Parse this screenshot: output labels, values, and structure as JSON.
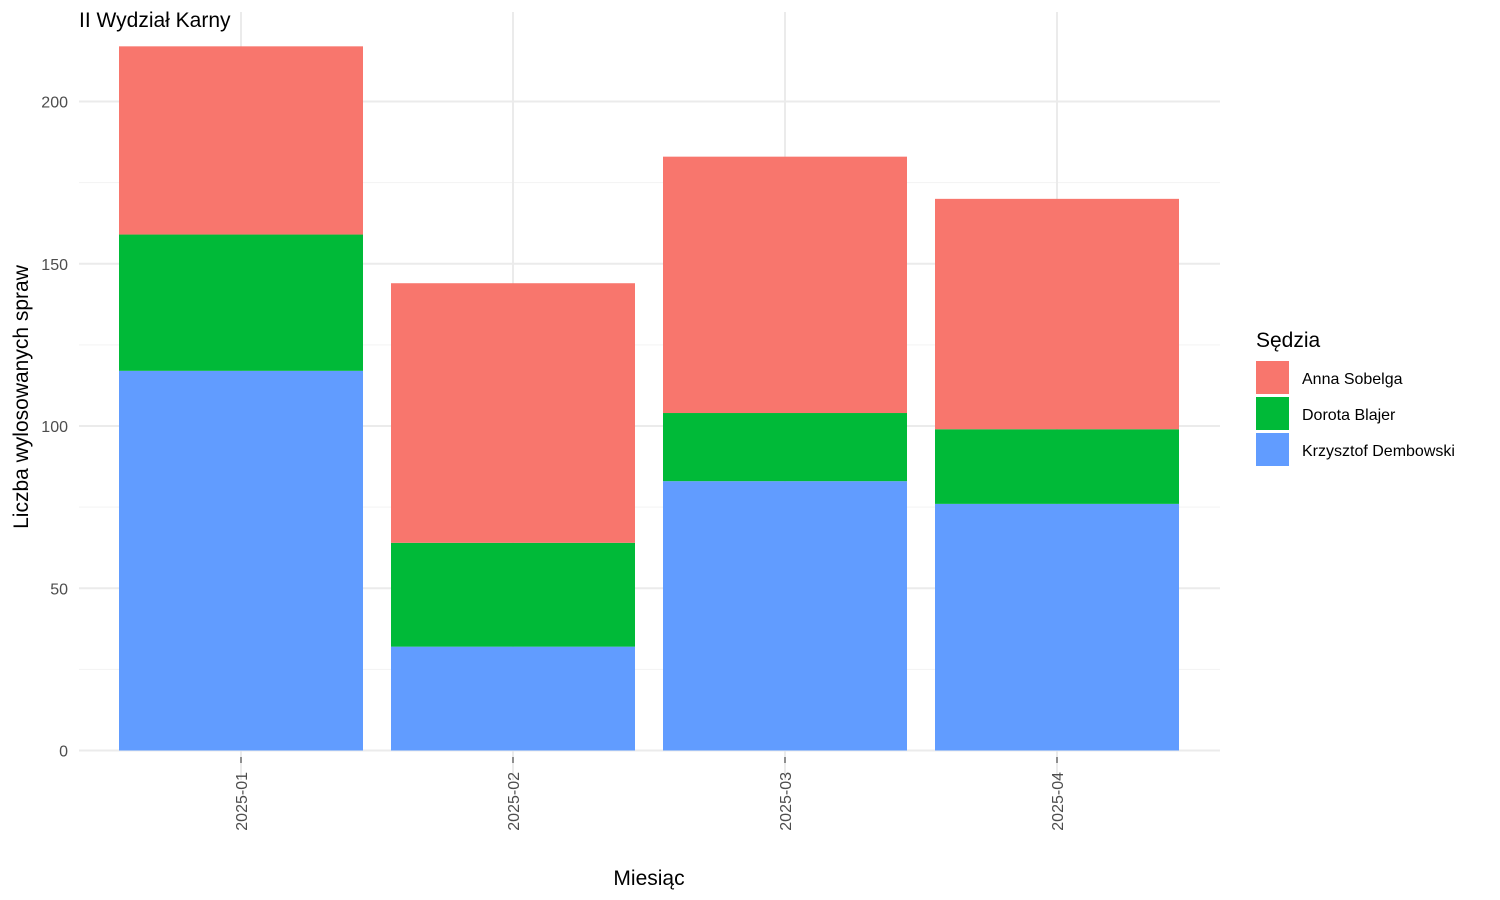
{
  "chart_data": {
    "type": "bar",
    "stacked": true,
    "title": "II Wydział Karny",
    "xlabel": "Miesiąc",
    "ylabel": "Liczba wylosowanych spraw",
    "categories": [
      "2025-01",
      "2025-02",
      "2025-03",
      "2025-04"
    ],
    "yticks": [
      0,
      50,
      100,
      150,
      200
    ],
    "ylim": [
      -9.5,
      226
    ],
    "grid": true,
    "legend": {
      "title": "Sędzia",
      "position": "right",
      "items": [
        "Anna Sobelga",
        "Dorota Blajer",
        "Krzysztof Dembowski"
      ]
    },
    "series": [
      {
        "name": "Krzysztof Dembowski",
        "color": "#619CFF",
        "values": [
          117,
          32,
          83,
          76
        ]
      },
      {
        "name": "Dorota Blajer",
        "color": "#00BA38",
        "values": [
          42,
          32,
          21,
          23
        ]
      },
      {
        "name": "Anna Sobelga",
        "color": "#F8766D",
        "values": [
          58,
          80,
          79,
          71
        ]
      }
    ]
  }
}
